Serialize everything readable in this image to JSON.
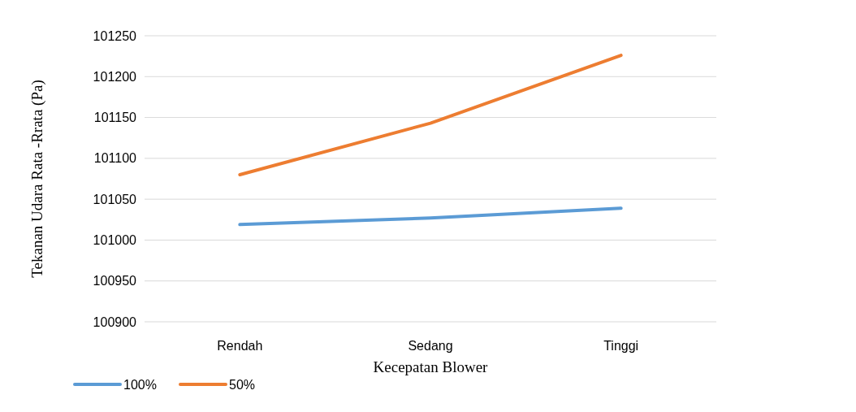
{
  "chart_data": {
    "type": "line",
    "xlabel": "Kecepatan Blower",
    "ylabel": "Tekanan Udara Rata -Rrata (Pa)",
    "categories": [
      "Rendah",
      "Sedang",
      "Tinggi"
    ],
    "series": [
      {
        "name": "100%",
        "color": "#5b9bd5",
        "values": [
          101019,
          101027,
          101039
        ]
      },
      {
        "name": "50%",
        "color": "#ed7d31",
        "values": [
          101080,
          101143,
          101226
        ]
      }
    ],
    "ylim": [
      100900,
      101250
    ],
    "yticks": [
      100900,
      100950,
      101000,
      101050,
      101100,
      101150,
      101200,
      101250
    ],
    "grid": "y",
    "legend": "bottom left",
    "marker": "none",
    "line_style": "solid"
  }
}
